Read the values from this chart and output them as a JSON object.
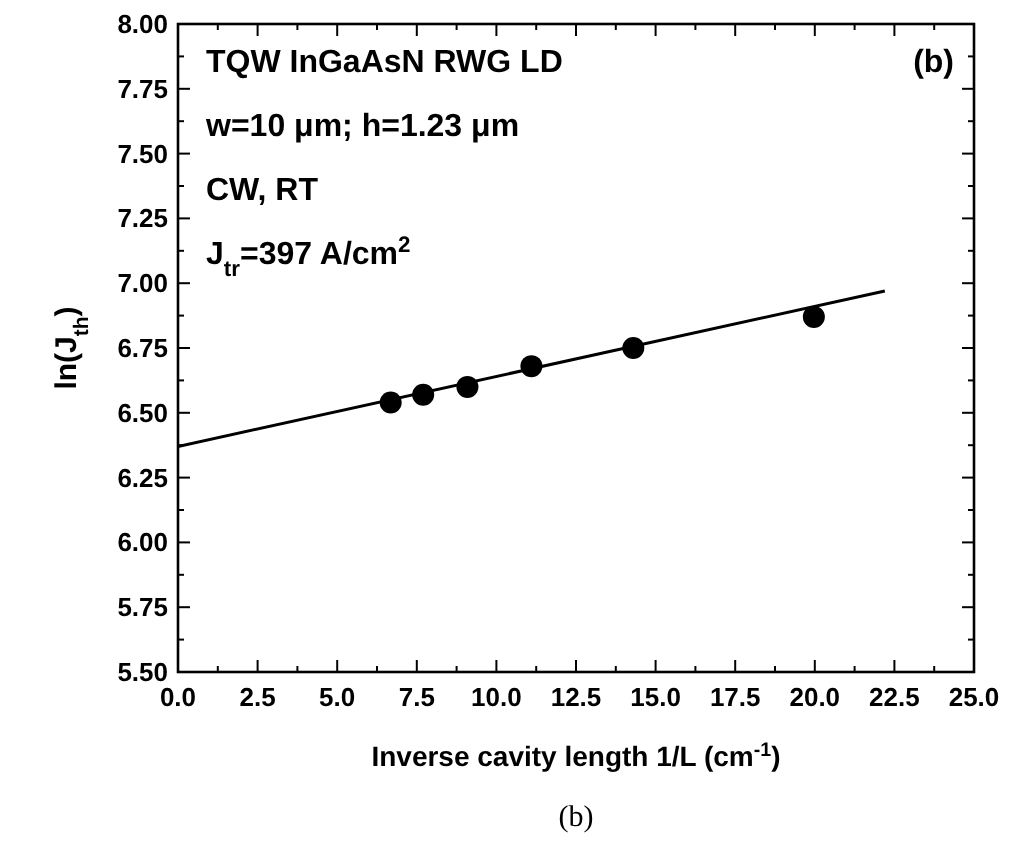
{
  "chart_data": {
    "type": "scatter",
    "xlabel": "Inverse cavity length 1/L (cm$^{-1}$)",
    "ylabel": "ln(J$_{th}$)",
    "xlim": [
      0,
      25
    ],
    "ylim": [
      5.5,
      8
    ],
    "xticks": [
      {
        "value": 0,
        "label": "0.0"
      },
      {
        "value": 1.25,
        "label": null
      },
      {
        "value": 2.5,
        "label": "2.5"
      },
      {
        "value": 3.75,
        "label": null
      },
      {
        "value": 5,
        "label": "5.0"
      },
      {
        "value": 6.25,
        "label": null
      },
      {
        "value": 7.5,
        "label": "7.5"
      },
      {
        "value": 8.75,
        "label": null
      },
      {
        "value": 10,
        "label": "10.0"
      },
      {
        "value": 11.25,
        "label": null
      },
      {
        "value": 12.5,
        "label": "12.5"
      },
      {
        "value": 13.75,
        "label": null
      },
      {
        "value": 15,
        "label": "15.0"
      },
      {
        "value": 16.25,
        "label": null
      },
      {
        "value": 17.5,
        "label": "17.5"
      },
      {
        "value": 18.75,
        "label": null
      },
      {
        "value": 20,
        "label": "20.0"
      },
      {
        "value": 21.25,
        "label": null
      },
      {
        "value": 22.5,
        "label": "22.5"
      },
      {
        "value": 23.75,
        "label": null
      },
      {
        "value": 25,
        "label": "25.0"
      }
    ],
    "yticks": [
      {
        "value": 5.5,
        "label": "5.50"
      },
      {
        "value": 5.625,
        "label": null
      },
      {
        "value": 5.75,
        "label": "5.75"
      },
      {
        "value": 5.875,
        "label": null
      },
      {
        "value": 6,
        "label": "6.00"
      },
      {
        "value": 6.125,
        "label": null
      },
      {
        "value": 6.25,
        "label": "6.25"
      },
      {
        "value": 6.375,
        "label": null
      },
      {
        "value": 6.5,
        "label": "6.50"
      },
      {
        "value": 6.625,
        "label": null
      },
      {
        "value": 6.75,
        "label": "6.75"
      },
      {
        "value": 6.875,
        "label": null
      },
      {
        "value": 7,
        "label": "7.00"
      },
      {
        "value": 7.125,
        "label": null
      },
      {
        "value": 7.25,
        "label": "7.25"
      },
      {
        "value": 7.375,
        "label": null
      },
      {
        "value": 7.5,
        "label": "7.50"
      },
      {
        "value": 7.625,
        "label": null
      },
      {
        "value": 7.75,
        "label": "7.75"
      },
      {
        "value": 7.875,
        "label": null
      },
      {
        "value": 8,
        "label": "8.00"
      }
    ],
    "grid": false,
    "series": [
      {
        "marker": "circle",
        "color": "#000000",
        "x": [
          6.68,
          7.7,
          9.09,
          11.1,
          14.3,
          19.97
        ],
        "values": [
          6.54,
          6.57,
          6.6,
          6.68,
          6.75,
          6.87
        ]
      },
      {
        "type": "line",
        "marker": "none",
        "color": "#000000",
        "x": [
          0,
          22.2
        ],
        "values": [
          6.37,
          6.97
        ]
      }
    ],
    "annotations": [
      "TQW InGaAsN RWG LD",
      "w=10 μm; h=1.23 μm",
      "CW, RT",
      "J$_{tr}$=397 A/cm$^{2}$",
      "(b)",
      "(b)"
    ]
  }
}
